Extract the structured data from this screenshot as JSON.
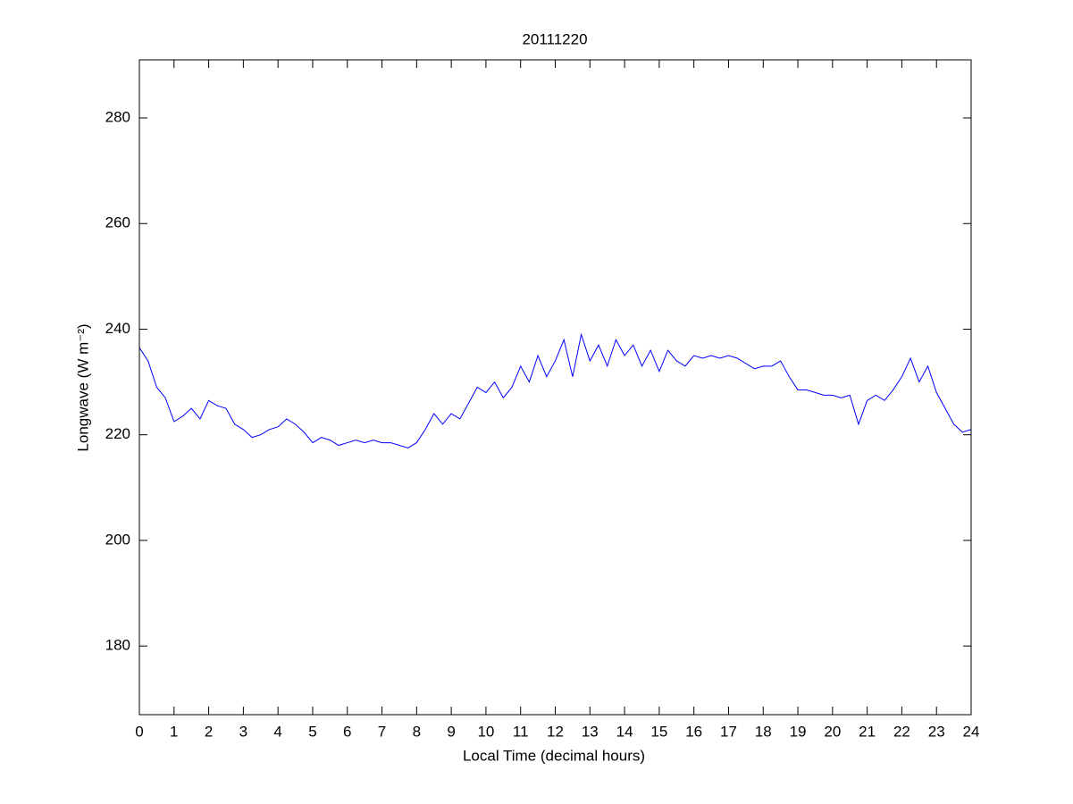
{
  "chart_data": {
    "type": "line",
    "title": "20111220",
    "xlabel": "Local Time (decimal hours)",
    "ylabel": "Longwave (W m⁻²)",
    "color": "#0000ff",
    "x": [
      0,
      0.25,
      0.5,
      0.75,
      1,
      1.25,
      1.5,
      1.75,
      2,
      2.25,
      2.5,
      2.75,
      3,
      3.25,
      3.5,
      3.75,
      4,
      4.25,
      4.5,
      4.75,
      5,
      5.25,
      5.5,
      5.75,
      6,
      6.25,
      6.5,
      6.75,
      7,
      7.25,
      7.5,
      7.75,
      8,
      8.25,
      8.5,
      8.75,
      9,
      9.25,
      9.5,
      9.75,
      10,
      10.25,
      10.5,
      10.75,
      11,
      11.25,
      11.5,
      11.75,
      12,
      12.25,
      12.5,
      12.75,
      13,
      13.25,
      13.5,
      13.75,
      14,
      14.25,
      14.5,
      14.75,
      15,
      15.25,
      15.5,
      15.75,
      16,
      16.25,
      16.5,
      16.75,
      17,
      17.25,
      17.5,
      17.75,
      18,
      18.25,
      18.5,
      18.75,
      19,
      19.25,
      19.5,
      19.75,
      20,
      20.25,
      20.5,
      20.75,
      21,
      21.25,
      21.5,
      21.75,
      22,
      22.25,
      22.5,
      22.75,
      23,
      23.25,
      23.5,
      23.75,
      24
    ],
    "values": [
      236.5,
      234,
      229,
      227,
      222.5,
      223.5,
      225,
      223,
      226.5,
      225.5,
      225,
      222,
      221,
      219.5,
      220,
      221,
      221.5,
      223,
      222,
      220.5,
      218.5,
      219.5,
      219,
      218,
      218.5,
      219,
      218.5,
      219,
      218.5,
      218.5,
      218,
      217.5,
      218.5,
      221,
      224,
      222,
      224,
      223,
      226,
      229,
      228,
      230,
      227,
      229,
      233,
      230,
      235,
      231,
      234,
      238,
      231,
      239,
      234,
      237,
      233,
      238,
      235,
      237,
      233,
      236,
      232,
      236,
      234,
      233,
      235,
      234.5,
      235,
      234.5,
      235,
      234.5,
      233.5,
      232.5,
      233,
      233,
      234,
      231,
      228.5,
      228.5,
      228,
      227.5,
      227.5,
      227,
      227.5,
      222,
      226.5,
      227.5,
      226.5,
      228.5,
      231,
      234.5,
      230,
      233,
      228,
      225,
      222,
      220.5,
      221
    ],
    "xlim": [
      0,
      24
    ],
    "xticks": [
      0,
      1,
      2,
      3,
      4,
      5,
      6,
      7,
      8,
      9,
      10,
      11,
      12,
      13,
      14,
      15,
      16,
      17,
      18,
      19,
      20,
      21,
      22,
      23,
      24
    ],
    "ylim": [
      167,
      291
    ],
    "yticks": [
      180,
      200,
      220,
      240,
      260,
      280
    ]
  }
}
